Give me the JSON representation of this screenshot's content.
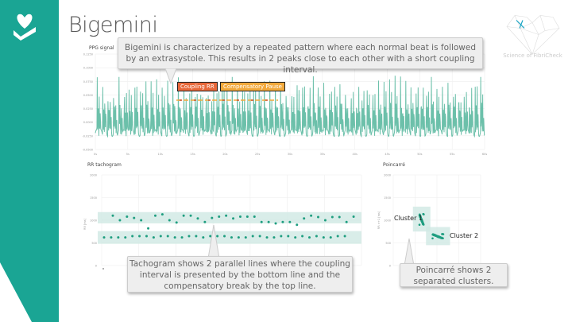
{
  "header": {
    "title": "Bigemini",
    "logo_text": "Science of FibriCheck",
    "app_icon": "heart-hand-icon"
  },
  "colors": {
    "accent": "#1aa594",
    "signal": "#6cc0aa",
    "dot": "#1f9e80",
    "band": "#cfe8e3",
    "coupling": "#e8683a",
    "pause": "#f2a93b"
  },
  "ppg": {
    "label": "PPG signal",
    "tooltip": "Bigemini is characterized by a repeated pattern where each normal beat is followed by an extrasystole. This results in 2 peaks close to each other with a short coupling interval.",
    "tag_coupling": "Coupling RR",
    "tag_pause": "Compensatory Pause"
  },
  "tachogram": {
    "label": "RR tachogram",
    "tooltip": "Tachogram shows 2 parallel lines where the coupling interval is presented by the bottom line and the compensatory break by the top line."
  },
  "poincare": {
    "label": "Poincarré",
    "tooltip": "Poincarré shows 2 separated clusters.",
    "cluster1": "Cluster 1",
    "cluster2": "Cluster 2"
  },
  "chart_data": [
    {
      "type": "line",
      "title": "PPG signal",
      "ylim": [
        -0.05,
        0.125
      ],
      "yticks": [
        "0.1250",
        "0.1000",
        "0.0750",
        "0.0500",
        "0.0250",
        "0.0000",
        "-0.0250",
        "-0.0500"
      ],
      "xlim": [
        0,
        60
      ],
      "xticks": [
        "0s",
        "5s",
        "10s",
        "15s",
        "20s",
        "25s",
        "30s",
        "35s",
        "40s",
        "45s",
        "50s",
        "55s",
        "60s"
      ],
      "grid": true
    },
    {
      "type": "scatter",
      "title": "RR tachogram",
      "ylabel": "RR [ms]",
      "ylim": [
        0,
        2000
      ],
      "yticks": [
        "2000",
        "1500",
        "1000",
        "500",
        "0"
      ],
      "grid": true,
      "top_row": [
        1100,
        1000,
        1080,
        1050,
        1000,
        820,
        1100,
        1130,
        1000,
        950,
        1100,
        1100,
        1040,
        960,
        1050,
        1080,
        1100,
        1040,
        1080,
        1080,
        1080,
        960,
        960,
        930,
        960,
        960,
        900,
        1040,
        1100,
        1070,
        1000,
        1070,
        1070,
        960,
        1080
      ],
      "bottom_row": [
        620,
        620,
        620,
        620,
        650,
        650,
        650,
        620,
        650,
        650,
        620,
        620,
        650,
        650,
        620,
        650,
        650,
        650,
        620,
        620,
        620,
        650,
        650,
        620,
        620,
        650,
        650,
        620,
        650,
        620,
        650,
        620,
        620,
        650,
        650
      ],
      "outlier": [
        0
      ]
    },
    {
      "type": "scatter",
      "title": "Poincarré",
      "ylabel": "RR n+1 [ms]",
      "xlim": [
        0,
        2000
      ],
      "ylim": [
        0,
        2000
      ],
      "yticks": [
        "2000",
        "1500",
        "1000",
        "500",
        "0"
      ],
      "grid": true,
      "clusters": [
        {
          "name": "Cluster 1",
          "x_range": [
            600,
            700
          ],
          "y_range": [
            900,
            1150
          ]
        },
        {
          "name": "Cluster 2",
          "x_range": [
            900,
            1150
          ],
          "y_range": [
            600,
            700
          ]
        }
      ]
    }
  ]
}
